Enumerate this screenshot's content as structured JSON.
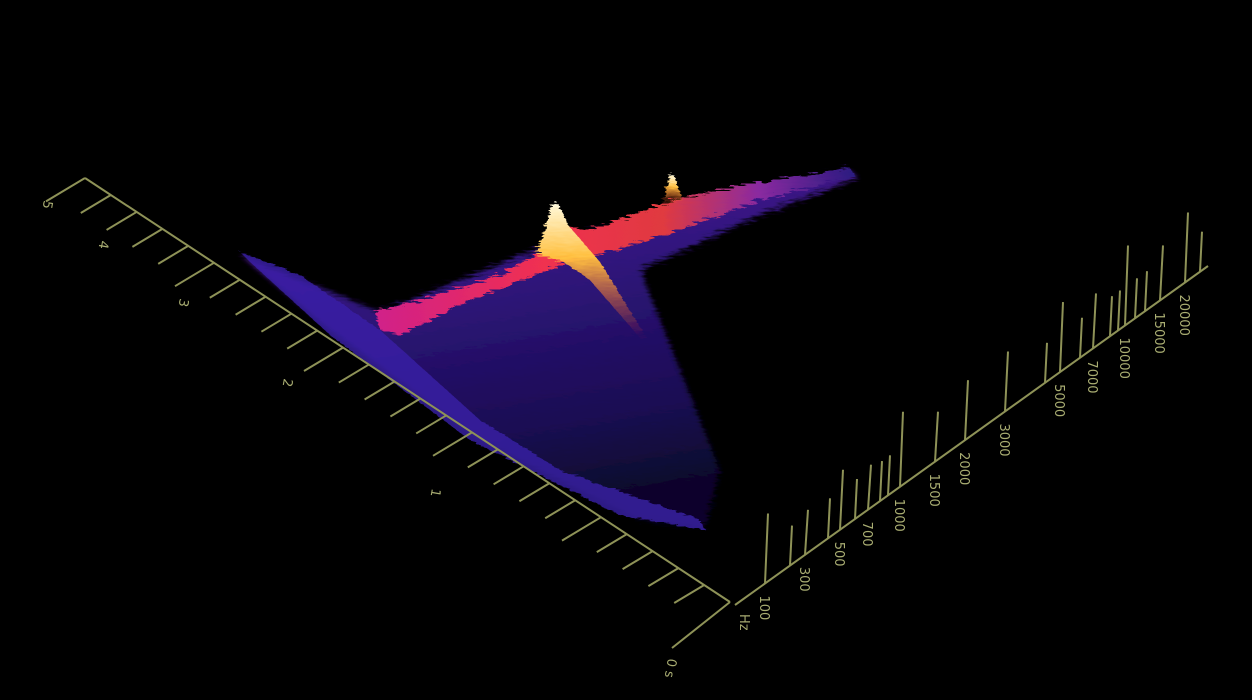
{
  "time_axis": {
    "ticks": [
      "0 s",
      "1",
      "2",
      "3",
      "4",
      "5"
    ]
  },
  "frequency_axis": {
    "unit": "Hz",
    "ticks": [
      "100",
      "300",
      "500",
      "700",
      "1000",
      "1500",
      "2000",
      "3000",
      "5000",
      "7000",
      "10000",
      "15000",
      "20000"
    ]
  }
}
